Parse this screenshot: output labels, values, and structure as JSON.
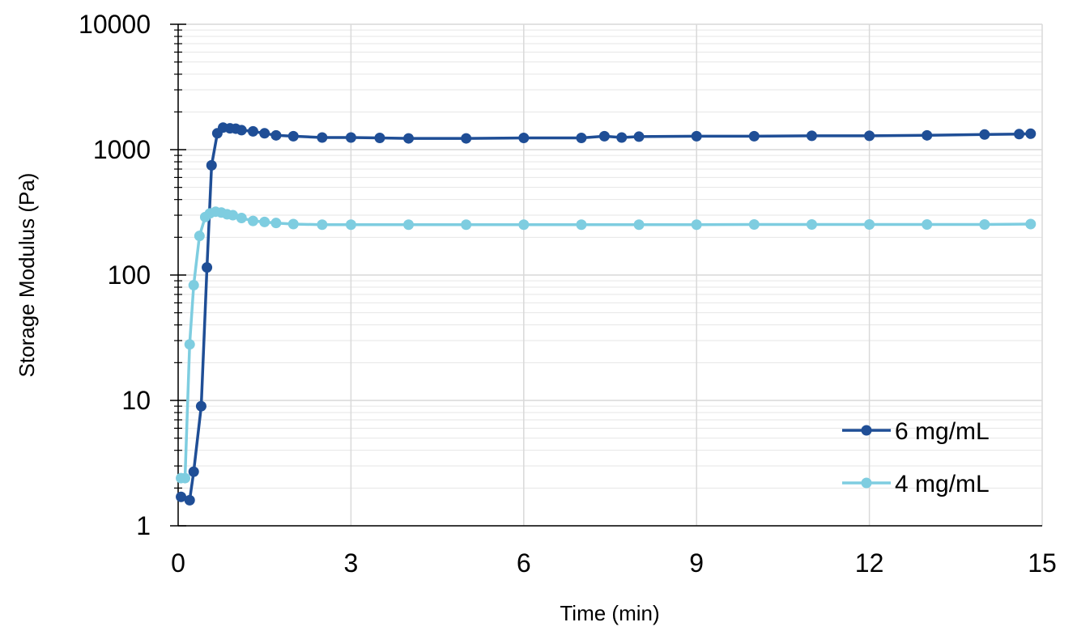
{
  "chart_data": {
    "type": "line",
    "title": "",
    "xlabel": "Time (min)",
    "ylabel": "Storage Modulus (Pa)",
    "xlim": [
      0,
      15
    ],
    "ylim": [
      1,
      10000
    ],
    "y_scale": "log",
    "grid": true,
    "legend_position": "bottom-right",
    "x_ticks": [
      "0",
      "3",
      "6",
      "9",
      "12",
      "15"
    ],
    "y_ticks": [
      "1",
      "10",
      "100",
      "1000",
      "10000"
    ],
    "series": [
      {
        "name": "6 mg/mL",
        "color": "#1f4e96",
        "x": [
          0.05,
          0.2,
          0.27,
          0.4,
          0.5,
          0.58,
          0.68,
          0.78,
          0.9,
          1.0,
          1.1,
          1.3,
          1.5,
          1.7,
          2.0,
          2.5,
          3.0,
          3.5,
          4.0,
          5.0,
          6.0,
          7.0,
          7.4,
          7.7,
          8.0,
          9.0,
          10.0,
          11.0,
          12.0,
          13.0,
          14.0,
          14.6,
          14.8
        ],
        "values": [
          1.7,
          1.6,
          2.7,
          9,
          115,
          750,
          1350,
          1500,
          1480,
          1470,
          1430,
          1400,
          1350,
          1300,
          1280,
          1250,
          1250,
          1240,
          1230,
          1230,
          1240,
          1240,
          1280,
          1250,
          1270,
          1280,
          1280,
          1290,
          1290,
          1300,
          1320,
          1330,
          1340
        ]
      },
      {
        "name": "4 mg/mL",
        "color": "#7ecde0",
        "x": [
          0.05,
          0.12,
          0.2,
          0.27,
          0.37,
          0.47,
          0.55,
          0.65,
          0.75,
          0.85,
          0.95,
          1.1,
          1.3,
          1.5,
          1.7,
          2.0,
          2.5,
          3.0,
          4.0,
          5.0,
          6.0,
          7.0,
          8.0,
          9.0,
          10.0,
          11.0,
          12.0,
          13.0,
          14.0,
          14.8
        ],
        "values": [
          2.4,
          2.4,
          28,
          83,
          205,
          290,
          310,
          320,
          315,
          305,
          300,
          285,
          270,
          265,
          260,
          255,
          252,
          252,
          252,
          252,
          252,
          252,
          252,
          252,
          253,
          253,
          253,
          253,
          253,
          255
        ]
      }
    ]
  }
}
